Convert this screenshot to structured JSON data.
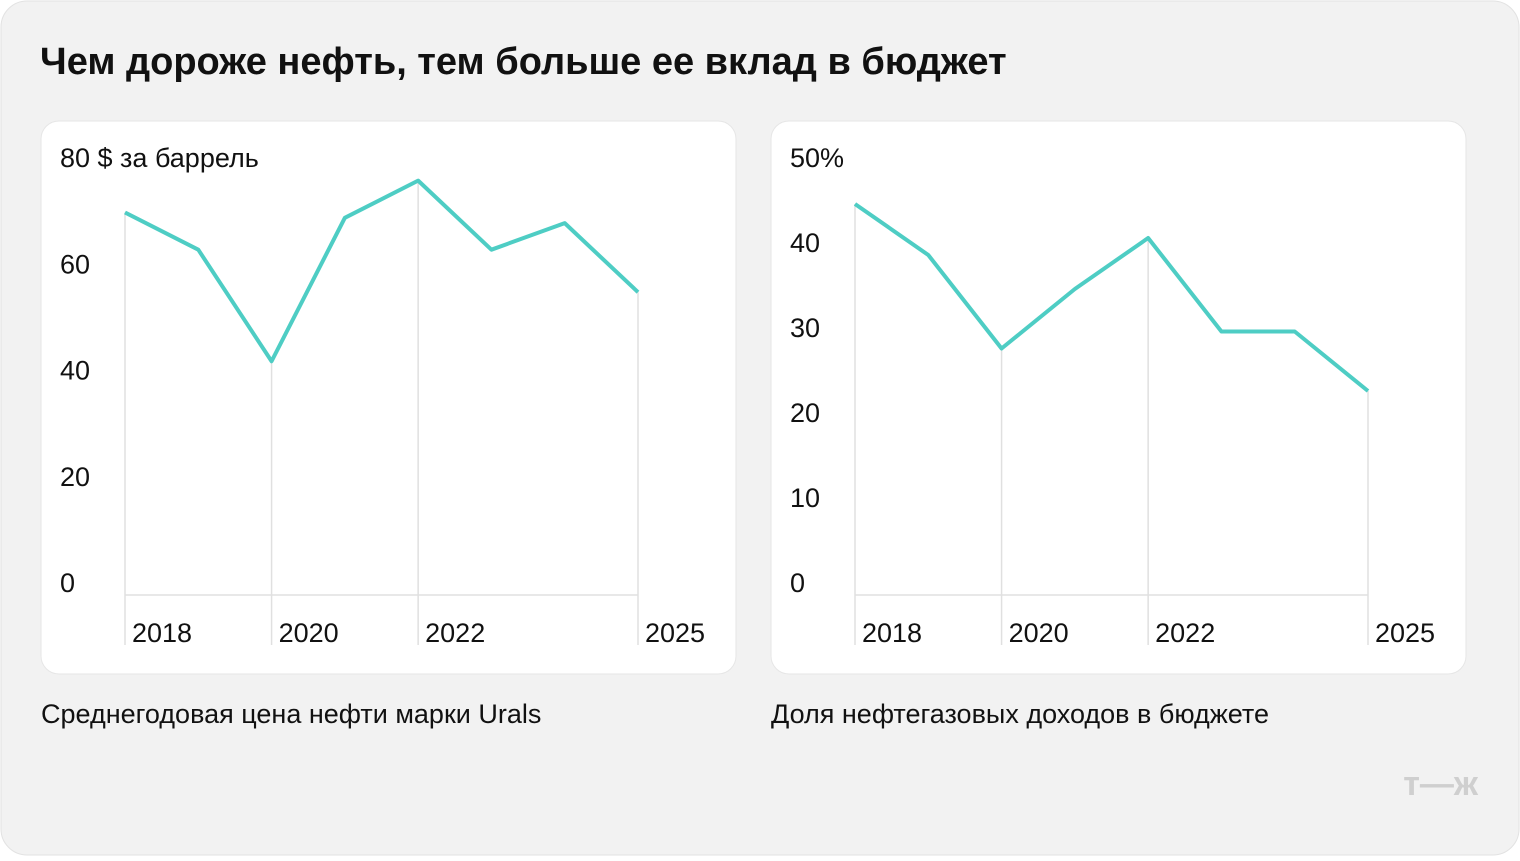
{
  "title": "Чем дороже нефть, тем больше ее вклад в бюджет",
  "chart_data": [
    {
      "type": "line",
      "caption": "Среднегодовая цена нефти марки Urals",
      "x": [
        2018,
        2019,
        2020,
        2021,
        2022,
        2023,
        2024,
        2025
      ],
      "values": [
        72,
        65,
        44,
        71,
        78,
        65,
        70,
        57
      ],
      "color": "#4ecdc4",
      "xlim": [
        2018,
        2025
      ],
      "xticks": [
        2018,
        2020,
        2022,
        2025
      ],
      "ylim": [
        0,
        80
      ],
      "yticks": [
        0,
        20,
        40,
        60,
        {
          "value": 80,
          "label": "80 $ за баррель"
        }
      ]
    },
    {
      "type": "line",
      "caption": "Доля нефтегазовых доходов в бюджете",
      "x": [
        2018,
        2019,
        2020,
        2021,
        2022,
        2023,
        2024,
        2025
      ],
      "values": [
        46,
        40,
        29,
        36,
        42,
        31,
        31,
        24
      ],
      "color": "#4ecdc4",
      "xlim": [
        2018,
        2025
      ],
      "xticks": [
        2018,
        2020,
        2022,
        2025
      ],
      "ylim": [
        0,
        50
      ],
      "yticks": [
        0,
        10,
        20,
        30,
        40,
        {
          "value": 50,
          "label": "50%"
        }
      ]
    }
  ],
  "logo": "т—ж"
}
